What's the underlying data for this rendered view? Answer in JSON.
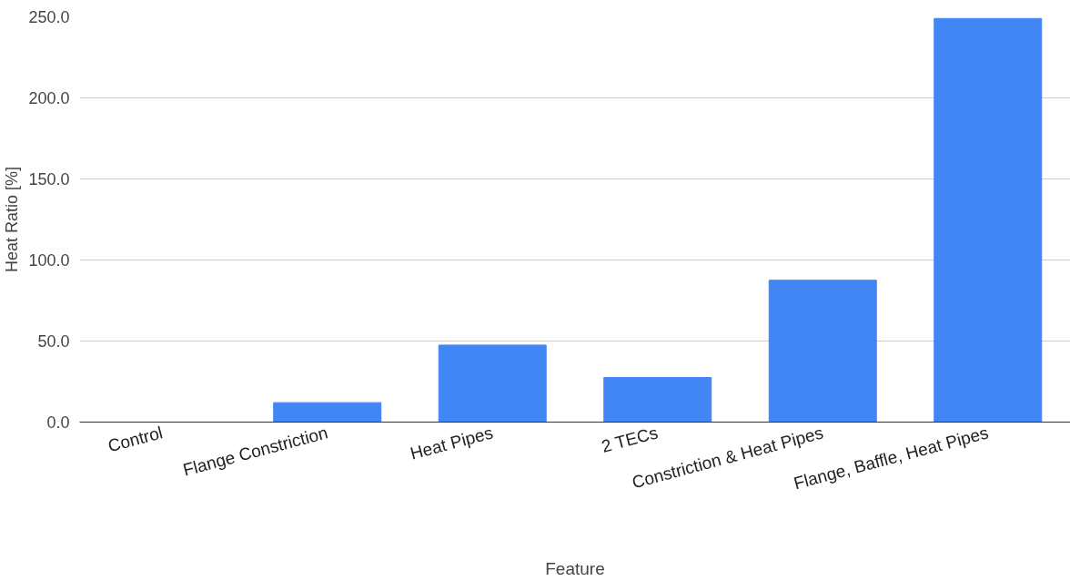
{
  "chart_data": {
    "type": "bar",
    "xlabel": "Feature",
    "ylabel": "Heat Ratio [%]",
    "categories": [
      "Control",
      "Flange Constriction",
      "Heat Pipes",
      "2 TECs",
      "Constriction & Heat Pipes",
      "Flange, Baffle, Heat Pipes"
    ],
    "values": [
      0,
      12,
      47.5,
      27.5,
      87.5,
      249
    ],
    "color": "#4285f4",
    "ylim": [
      0,
      250
    ],
    "yticks": [
      {
        "value": 0,
        "label": "0.0"
      },
      {
        "value": 50,
        "label": "50.0"
      },
      {
        "value": 100,
        "label": "100.0"
      },
      {
        "value": 150,
        "label": "150.0"
      },
      {
        "value": 200,
        "label": "200.0"
      },
      {
        "value": 250,
        "label": "250.0"
      }
    ],
    "grid": "y"
  }
}
